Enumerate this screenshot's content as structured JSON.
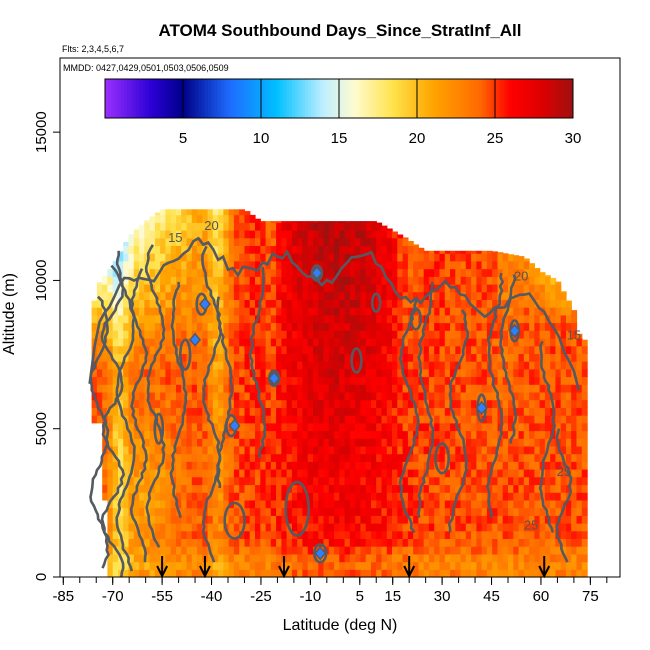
{
  "chart_data": {
    "type": "heatmap",
    "title": "ATOM4 Southbound Days_Since_StratInf_All",
    "subtitle_flights": "Flts: 2,3,4,5,6,7",
    "subtitle_dates": "MMDD: 0427,0429,0501,0503,0506,0509",
    "xlabel": "Latitude (deg N)",
    "ylabel": "Altitude (m)",
    "xlim": [
      -86,
      84
    ],
    "ylim": [
      0,
      17500
    ],
    "x_ticks": [
      "-85",
      "-70",
      "-55",
      "-40",
      "-25",
      "-10",
      "5",
      "15",
      "30",
      "45",
      "60",
      "75"
    ],
    "y_ticks": [
      "0",
      "5000",
      "10000",
      "15000"
    ],
    "colorbar": {
      "range": [
        0,
        30
      ],
      "tick_values": [
        5,
        10,
        15,
        20,
        25,
        30
      ],
      "tick_labels": [
        "5",
        "10",
        "15",
        "20",
        "25",
        "30"
      ],
      "stops": [
        {
          "v": 0,
          "color": "#9b30ff"
        },
        {
          "v": 3,
          "color": "#2a00d5"
        },
        {
          "v": 5,
          "color": "#000088"
        },
        {
          "v": 8,
          "color": "#1e6bff"
        },
        {
          "v": 11,
          "color": "#00bfff"
        },
        {
          "v": 14,
          "color": "#bfefff"
        },
        {
          "v": 16,
          "color": "#fffbd0"
        },
        {
          "v": 18.5,
          "color": "#ffe24a"
        },
        {
          "v": 21,
          "color": "#ffa500"
        },
        {
          "v": 24,
          "color": "#ff6a00"
        },
        {
          "v": 26,
          "color": "#ff0000"
        },
        {
          "v": 28,
          "color": "#dd0000"
        },
        {
          "v": 30,
          "color": "#a01010"
        }
      ]
    },
    "contour_labels": [
      "15",
      "20",
      "20",
      "15",
      "25",
      "25"
    ],
    "profile_markers_lat": [
      -55,
      -42,
      -18,
      20,
      61
    ],
    "grid": false,
    "legend": "colorbar top"
  }
}
